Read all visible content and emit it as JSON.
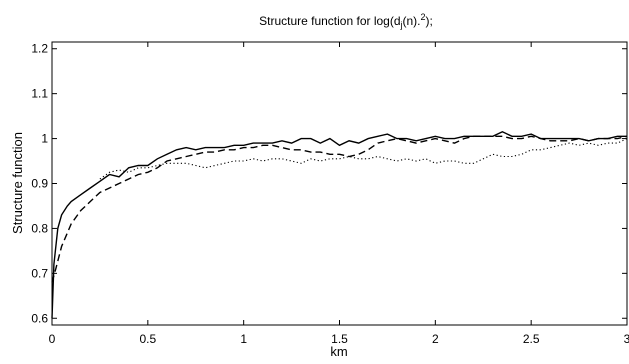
{
  "chart_data": {
    "type": "line",
    "title": "Structure function for log(dj(n).^2);",
    "title_parts": {
      "base": "Structure function for log(d",
      "sub": "j",
      "mid": "(n).",
      "sup": "2",
      "end": ");"
    },
    "xlabel": "km",
    "ylabel": "Structure function",
    "xlim": [
      0,
      3
    ],
    "ylim": [
      0.585,
      1.215
    ],
    "xticks": [
      0,
      0.5,
      1,
      1.5,
      2,
      2.5,
      3
    ],
    "xtick_labels": [
      "0",
      "0.5",
      "1",
      "1.5",
      "2",
      "2.5",
      "3"
    ],
    "yticks": [
      0.6,
      0.7,
      0.8,
      0.9,
      1.0,
      1.1,
      1.2
    ],
    "ytick_labels": [
      "0.6",
      "0.7",
      "0.8",
      "0.9",
      "1",
      "1.1",
      "1.2"
    ],
    "grid": false,
    "legend": "none",
    "series": [
      {
        "style": "solid",
        "x": [
          0,
          0.01,
          0.03,
          0.05,
          0.08,
          0.1,
          0.15,
          0.2,
          0.25,
          0.3,
          0.35,
          0.4,
          0.45,
          0.5,
          0.55,
          0.6,
          0.65,
          0.7,
          0.75,
          0.8,
          0.85,
          0.9,
          0.95,
          1.0,
          1.05,
          1.1,
          1.15,
          1.2,
          1.25,
          1.3,
          1.35,
          1.4,
          1.45,
          1.5,
          1.55,
          1.6,
          1.65,
          1.7,
          1.75,
          1.8,
          1.85,
          1.9,
          1.95,
          2.0,
          2.05,
          2.1,
          2.15,
          2.2,
          2.25,
          2.3,
          2.35,
          2.4,
          2.45,
          2.5,
          2.55,
          2.6,
          2.65,
          2.7,
          2.75,
          2.8,
          2.85,
          2.9,
          2.95,
          3.0
        ],
        "y": [
          0.6,
          0.72,
          0.8,
          0.83,
          0.85,
          0.86,
          0.875,
          0.89,
          0.905,
          0.92,
          0.915,
          0.935,
          0.94,
          0.94,
          0.955,
          0.965,
          0.975,
          0.98,
          0.975,
          0.98,
          0.98,
          0.98,
          0.985,
          0.985,
          0.99,
          0.99,
          0.99,
          0.995,
          0.99,
          1.0,
          1.0,
          0.99,
          1.0,
          0.985,
          0.995,
          0.99,
          1.0,
          1.005,
          1.01,
          1.0,
          1.0,
          0.995,
          1.0,
          1.005,
          1.0,
          1.0,
          1.005,
          1.005,
          1.005,
          1.005,
          1.015,
          1.005,
          1.005,
          1.01,
          1.0,
          1.0,
          1.0,
          1.0,
          1.0,
          0.995,
          1.0,
          1.0,
          1.005,
          1.005
        ]
      },
      {
        "style": "dashed",
        "x": [
          0,
          0.02,
          0.05,
          0.1,
          0.15,
          0.2,
          0.25,
          0.3,
          0.35,
          0.4,
          0.45,
          0.5,
          0.55,
          0.6,
          0.65,
          0.7,
          0.75,
          0.8,
          0.85,
          0.9,
          0.95,
          1.0,
          1.05,
          1.1,
          1.15,
          1.2,
          1.25,
          1.3,
          1.35,
          1.4,
          1.45,
          1.5,
          1.55,
          1.6,
          1.65,
          1.7,
          1.75,
          1.8,
          1.85,
          1.9,
          1.95,
          2.0,
          2.05,
          2.1,
          2.15,
          2.2,
          2.25,
          2.3,
          2.35,
          2.4,
          2.45,
          2.5,
          2.55,
          2.6,
          2.65,
          2.7,
          2.75,
          2.8,
          2.85,
          2.9,
          2.95,
          3.0
        ],
        "y": [
          0.68,
          0.71,
          0.76,
          0.81,
          0.84,
          0.86,
          0.88,
          0.89,
          0.9,
          0.91,
          0.92,
          0.925,
          0.935,
          0.95,
          0.955,
          0.96,
          0.965,
          0.97,
          0.97,
          0.975,
          0.975,
          0.98,
          0.98,
          0.985,
          0.985,
          0.98,
          0.975,
          0.975,
          0.97,
          0.97,
          0.965,
          0.965,
          0.96,
          0.965,
          0.975,
          0.99,
          0.995,
          1.0,
          0.995,
          0.99,
          0.995,
          1.0,
          0.995,
          0.99,
          1.0,
          1.005,
          1.005,
          1.005,
          1.005,
          1.0,
          1.0,
          1.005,
          1.0,
          0.995,
          0.995,
          0.995,
          1.0,
          0.995,
          1.0,
          1.0,
          1.0,
          1.005
        ]
      },
      {
        "style": "dotted",
        "x": [
          0.25,
          0.3,
          0.35,
          0.4,
          0.45,
          0.5,
          0.55,
          0.6,
          0.65,
          0.7,
          0.75,
          0.8,
          0.85,
          0.9,
          0.95,
          1.0,
          1.05,
          1.1,
          1.15,
          1.2,
          1.25,
          1.3,
          1.35,
          1.4,
          1.45,
          1.5,
          1.55,
          1.6,
          1.65,
          1.7,
          1.75,
          1.8,
          1.85,
          1.9,
          1.95,
          2.0,
          2.05,
          2.1,
          2.15,
          2.2,
          2.25,
          2.3,
          2.35,
          2.4,
          2.45,
          2.5,
          2.55,
          2.6,
          2.65,
          2.7,
          2.75,
          2.8,
          2.85,
          2.9,
          2.95,
          3.0
        ],
        "y": [
          0.91,
          0.925,
          0.93,
          0.925,
          0.935,
          0.935,
          0.94,
          0.945,
          0.945,
          0.945,
          0.94,
          0.935,
          0.94,
          0.945,
          0.95,
          0.95,
          0.955,
          0.95,
          0.955,
          0.955,
          0.95,
          0.945,
          0.955,
          0.95,
          0.955,
          0.955,
          0.96,
          0.955,
          0.955,
          0.96,
          0.955,
          0.95,
          0.955,
          0.95,
          0.955,
          0.945,
          0.95,
          0.95,
          0.945,
          0.945,
          0.955,
          0.965,
          0.96,
          0.96,
          0.965,
          0.975,
          0.975,
          0.98,
          0.985,
          0.99,
          0.985,
          0.99,
          0.985,
          0.99,
          0.99,
          1.0
        ]
      }
    ]
  }
}
